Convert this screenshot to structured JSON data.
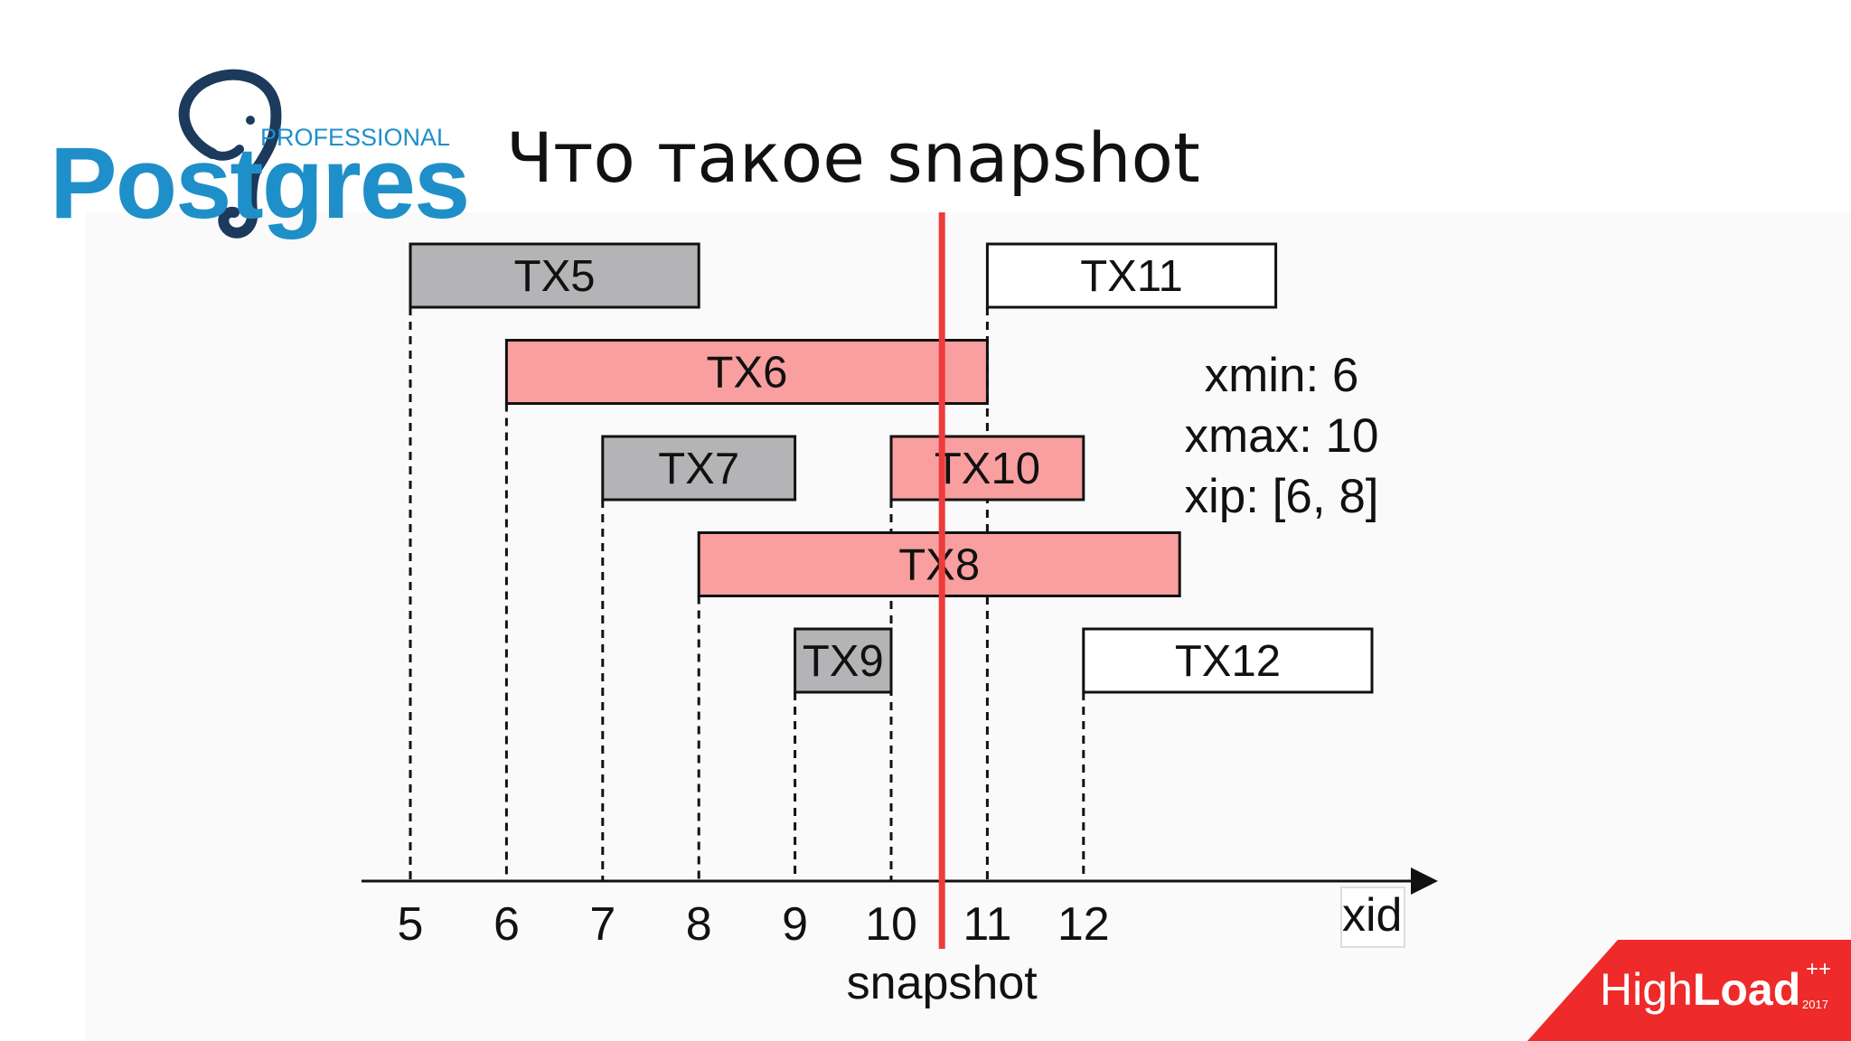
{
  "slide": {
    "title": "Что такое snapshot"
  },
  "logo": {
    "brand_label": "Postgres",
    "sub_label": "PROFESSIONAL"
  },
  "diagram": {
    "axis_label": "xid",
    "snapshot_label": "snapshot",
    "ticks": [
      "5",
      "6",
      "7",
      "8",
      "9",
      "10",
      "11",
      "12"
    ],
    "snapshot_at": 10.5,
    "colors": {
      "committed": "#b4b3b6",
      "in_progress": "#f99f9f",
      "future": "#ffffff",
      "snapshot_line": "#ee3b3b"
    },
    "transactions": [
      {
        "label": "TX5",
        "start": 5,
        "end": 8,
        "row": 0,
        "state": "committed"
      },
      {
        "label": "TX11",
        "start": 11,
        "end": 14,
        "row": 0,
        "state": "future"
      },
      {
        "label": "TX6",
        "start": 6,
        "end": 11,
        "row": 1,
        "state": "in_progress"
      },
      {
        "label": "TX7",
        "start": 7,
        "end": 9,
        "row": 2,
        "state": "committed"
      },
      {
        "label": "TX10",
        "start": 10,
        "end": 12,
        "row": 2,
        "state": "in_progress"
      },
      {
        "label": "TX8",
        "start": 8,
        "end": 13,
        "row": 3,
        "state": "in_progress"
      },
      {
        "label": "TX9",
        "start": 9,
        "end": 10,
        "row": 4,
        "state": "committed"
      },
      {
        "label": "TX12",
        "start": 12,
        "end": 15,
        "row": 4,
        "state": "future"
      }
    ]
  },
  "snapshot_info": {
    "xmin": "xmin: 6",
    "xmax": "xmax: 10",
    "xip": "xip: [6, 8]"
  },
  "badge": {
    "brand_light": "High",
    "brand_bold": "Load",
    "superscript": "++",
    "year": "2017",
    "color": "#ee2a2a"
  }
}
